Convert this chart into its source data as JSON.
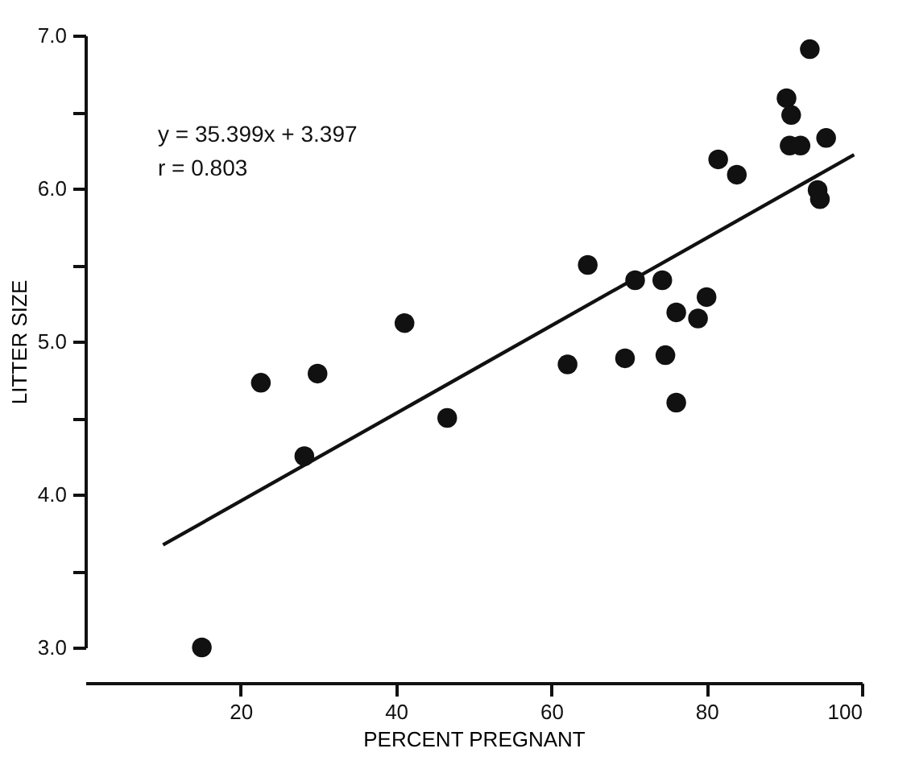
{
  "chart_data": {
    "type": "scatter",
    "xlabel": "PERCENT PREGNANT",
    "ylabel": "LITTER SIZE",
    "annotations": [
      "y = 35.399x + 3.397",
      "r = 0.803"
    ],
    "xlim": [
      0,
      100
    ],
    "ylim": [
      3,
      7
    ],
    "xticks": [
      20,
      40,
      60,
      80,
      100
    ],
    "yticks": [
      {
        "value": 3,
        "label": "3.0"
      },
      {
        "value": 3.5,
        "label": null
      },
      {
        "value": 4,
        "label": "4.0"
      },
      {
        "value": 4.5,
        "label": null
      },
      {
        "value": 5,
        "label": "5.0"
      },
      {
        "value": 5.5,
        "label": null
      },
      {
        "value": 6,
        "label": "6.0"
      },
      {
        "value": 6.5,
        "label": null
      },
      {
        "value": 7,
        "label": "7.0"
      }
    ],
    "marker": "circle",
    "series": [
      {
        "color": "#111111",
        "x": [
          15.0,
          22.6,
          29.9,
          28.2,
          41.1,
          46.6,
          62.1,
          64.7,
          69.5,
          70.8,
          74.3,
          74.7,
          76.1,
          76.1,
          78.9,
          80.0,
          81.5,
          83.9,
          90.3,
          90.9,
          90.7,
          92.1,
          93.3,
          95.4,
          94.3,
          94.6
        ],
        "values": [
          3.0,
          4.73,
          4.79,
          4.25,
          5.12,
          4.5,
          4.85,
          5.5,
          4.89,
          5.4,
          5.4,
          4.91,
          4.6,
          5.19,
          5.15,
          5.29,
          6.19,
          6.09,
          6.59,
          6.48,
          6.28,
          6.28,
          6.91,
          6.33,
          5.99,
          5.93
        ]
      },
      {
        "type": "line",
        "color": "#111111",
        "line_style": "solid",
        "marker": "none",
        "x": [
          10,
          99
        ],
        "values": [
          3.67,
          6.22
        ]
      }
    ]
  }
}
